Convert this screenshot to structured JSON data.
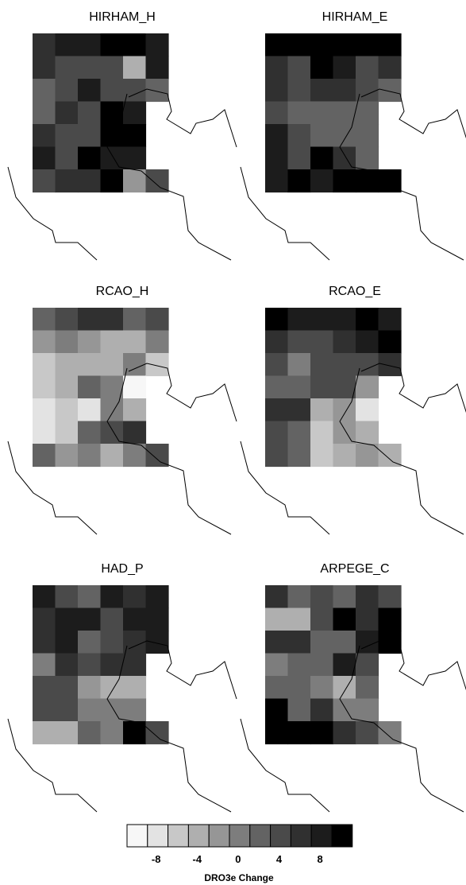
{
  "colorbar": {
    "ticks": [
      -8,
      -4,
      0,
      4,
      8
    ],
    "colors": [
      "#f7f7f7",
      "#e3e3e3",
      "#c8c8c8",
      "#afafaf",
      "#969696",
      "#7d7d7d",
      "#636363",
      "#4a4a4a",
      "#303030",
      "#1c1c1c",
      "#000000"
    ],
    "label": "DRO3e Change"
  },
  "panels": [
    {
      "title": "HIRHAM_H",
      "cells": [
        [
          8,
          9,
          9,
          10,
          10,
          9
        ],
        [
          8,
          7,
          7,
          7,
          3,
          9
        ],
        [
          6,
          7,
          9,
          7,
          7,
          6
        ],
        [
          6,
          8,
          7,
          10,
          9,
          -1
        ],
        [
          8,
          7,
          7,
          10,
          10,
          -1
        ],
        [
          9,
          7,
          10,
          9,
          9,
          -1
        ],
        [
          7,
          8,
          8,
          10,
          4,
          7
        ]
      ]
    },
    {
      "title": "HIRHAM_E",
      "cells": [
        [
          10,
          10,
          10,
          10,
          10,
          10
        ],
        [
          8,
          7,
          10,
          9,
          7,
          8
        ],
        [
          8,
          7,
          8,
          8,
          7,
          6
        ],
        [
          7,
          6,
          6,
          6,
          6,
          -1
        ],
        [
          9,
          7,
          6,
          6,
          6,
          -1
        ],
        [
          9,
          7,
          10,
          8,
          6,
          -1
        ],
        [
          9,
          10,
          9,
          10,
          10,
          10
        ]
      ]
    },
    {
      "title": "RCAO_H",
      "cells": [
        [
          6,
          7,
          8,
          8,
          6,
          7
        ],
        [
          4,
          5,
          4,
          3,
          3,
          5
        ],
        [
          2,
          3,
          3,
          3,
          5,
          2
        ],
        [
          2,
          3,
          6,
          5,
          0,
          -1
        ],
        [
          1,
          2,
          1,
          5,
          3,
          -1
        ],
        [
          1,
          2,
          6,
          7,
          8,
          -1
        ],
        [
          6,
          4,
          5,
          3,
          5,
          7
        ]
      ]
    },
    {
      "title": "RCAO_E",
      "cells": [
        [
          10,
          9,
          9,
          9,
          10,
          9
        ],
        [
          8,
          7,
          7,
          8,
          9,
          10
        ],
        [
          7,
          5,
          7,
          7,
          7,
          8
        ],
        [
          6,
          6,
          7,
          7,
          4,
          -1
        ],
        [
          8,
          8,
          3,
          4,
          1,
          -1
        ],
        [
          7,
          6,
          2,
          4,
          3,
          -1
        ],
        [
          7,
          6,
          2,
          3,
          4,
          3
        ]
      ]
    },
    {
      "title": "HAD_P",
      "cells": [
        [
          9,
          7,
          6,
          9,
          8,
          9
        ],
        [
          8,
          9,
          9,
          7,
          9,
          9
        ],
        [
          8,
          9,
          6,
          7,
          8,
          9
        ],
        [
          5,
          8,
          7,
          8,
          8,
          -1
        ],
        [
          7,
          7,
          4,
          3,
          3,
          -1
        ],
        [
          7,
          7,
          5,
          5,
          5,
          -1
        ],
        [
          3,
          3,
          6,
          5,
          10,
          7
        ]
      ]
    },
    {
      "title": "ARPEGE_C",
      "cells": [
        [
          8,
          6,
          7,
          6,
          8,
          7
        ],
        [
          3,
          3,
          7,
          10,
          8,
          10
        ],
        [
          8,
          8,
          6,
          6,
          9,
          10
        ],
        [
          5,
          6,
          6,
          9,
          7,
          -1
        ],
        [
          6,
          6,
          5,
          3,
          6,
          -1
        ],
        [
          10,
          6,
          8,
          5,
          5,
          -1
        ],
        [
          10,
          10,
          10,
          8,
          7,
          5
        ]
      ]
    }
  ]
}
